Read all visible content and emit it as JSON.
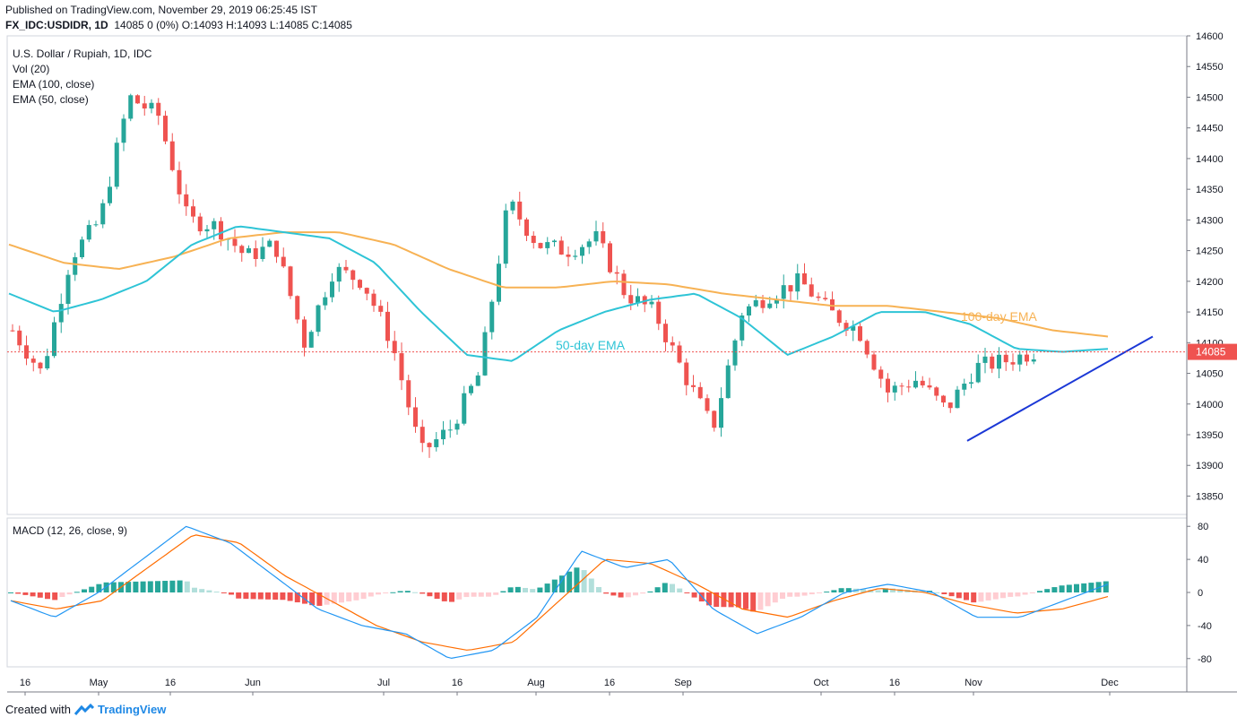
{
  "header": {
    "published": "Published on TradingView.com, November 29, 2019 06:25:45 IST",
    "symbol": "FX_IDC:USDIDR, 1D",
    "ohlc": "14085 0 (0%) O:14093 H:14093 L:14085 C:14085"
  },
  "legend": {
    "title": "U.S. Dollar / Rupiah, 1D, IDC",
    "vol": "Vol (20)",
    "ema100": "EMA (100, close)",
    "ema50": "EMA (50, close)",
    "macd": "MACD (12, 26, close, 9)"
  },
  "footer": {
    "created": "Created with",
    "brand": "TradingView"
  },
  "colors": {
    "up": "#26a69a",
    "down": "#ef5350",
    "ema50": "#2ec4d6",
    "ema100": "#f7b254",
    "macd": "#2196f3",
    "signal": "#ff6d00",
    "trend": "#1b38d6",
    "histUpLight": "#b2dfdb",
    "histDnLight": "#ffcdd2"
  },
  "chart_data": {
    "type": "candlestick",
    "title": "U.S. Dollar / Rupiah, 1D, IDC",
    "price_range": [
      13820,
      14600
    ],
    "price_ticks": [
      13850,
      13900,
      13950,
      14000,
      14050,
      14100,
      14150,
      14200,
      14250,
      14300,
      14350,
      14400,
      14450,
      14500,
      14550,
      14600
    ],
    "last_price": 14085,
    "last_price_label": "14085",
    "x_labels": [
      "16",
      "May",
      "16",
      "Jun",
      "Jul",
      "16",
      "Aug",
      "16",
      "Sep",
      "Oct",
      "16",
      "Nov",
      "Dec"
    ],
    "annotations": [
      {
        "text": "50-day EMA",
        "series": "ema50"
      },
      {
        "text": "100-day EMA",
        "series": "ema100"
      }
    ],
    "anchors": [
      14120,
      14050,
      14240,
      14300,
      14500,
      14470,
      14300,
      14290,
      14240,
      14260,
      14100,
      14220,
      14200,
      14100,
      13920,
      13960,
      14050,
      14330,
      14260,
      14250,
      14270,
      14180,
      14150,
      14050,
      13960,
      14150,
      14180,
      14200,
      14150,
      14120,
      14020,
      14040,
      13990,
      14060,
      14070,
      14085
    ],
    "ema50_anchors": [
      14180,
      14150,
      14170,
      14200,
      14260,
      14290,
      14280,
      14270,
      14230,
      14150,
      14080,
      14070,
      14120,
      14150,
      14170,
      14180,
      14140,
      14080,
      14110,
      14150,
      14150,
      14130,
      14090,
      14085,
      14090
    ],
    "ema100_anchors": [
      14260,
      14230,
      14220,
      14240,
      14270,
      14280,
      14280,
      14260,
      14220,
      14190,
      14190,
      14200,
      14195,
      14180,
      14170,
      14160,
      14160,
      14150,
      14140,
      14120,
      14110
    ],
    "trendline": {
      "from_price": 13940,
      "to_price": 14110
    },
    "macd": {
      "range": [
        -90,
        90
      ],
      "ticks": [
        80,
        40,
        0,
        -40,
        -80
      ],
      "macd_anchors": [
        -10,
        -30,
        0,
        40,
        80,
        60,
        20,
        -20,
        -40,
        -50,
        -80,
        -70,
        -30,
        50,
        30,
        40,
        -20,
        -50,
        -30,
        0,
        10,
        0,
        -30,
        -30,
        -10,
        10
      ],
      "signal_anchors": [
        -10,
        -20,
        -10,
        30,
        70,
        60,
        20,
        -10,
        -40,
        -60,
        -70,
        -60,
        -10,
        40,
        35,
        10,
        -20,
        -30,
        -10,
        5,
        0,
        -15,
        -25,
        -20,
        -5
      ]
    }
  }
}
